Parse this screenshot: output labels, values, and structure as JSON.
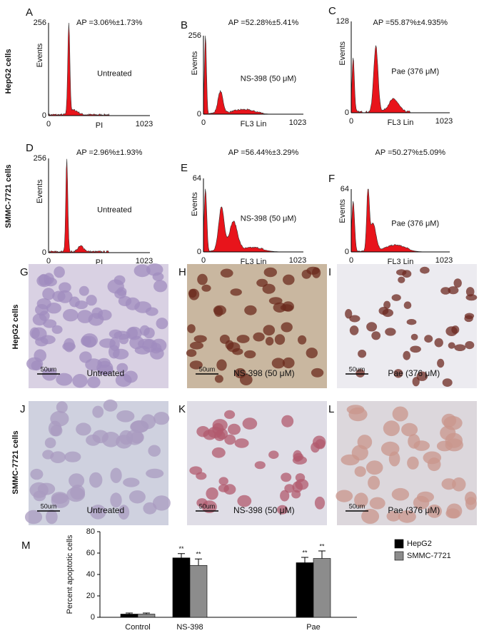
{
  "rows": [
    "HepG2 cells",
    "SMMC-7721 cells",
    "HepG2 cells",
    "SMMC-7721 cells"
  ],
  "histograms": [
    {
      "letter": "A",
      "ap": "AP =3.06%±1.73%",
      "condition": "Untreated",
      "xlabel": "PI",
      "ylabel": "Events",
      "yticks": [
        0,
        256
      ],
      "xticks": [
        0,
        1023
      ]
    },
    {
      "letter": "B",
      "ap": "AP =52.28%±5.41%",
      "condition": "NS-398 (50 μM)",
      "xlabel": "FL3 Lin",
      "ylabel": "Events",
      "yticks": [
        0,
        256
      ],
      "xticks": [
        0,
        1023
      ]
    },
    {
      "letter": "C",
      "ap": "AP =55.87%±4.935%",
      "condition": "Pae (376 μM)",
      "xlabel": "FL3 Lin",
      "ylabel": "Events",
      "yticks": [
        0,
        128
      ],
      "xticks": [
        0,
        1023
      ]
    },
    {
      "letter": "D",
      "ap": "AP =2.96%±1.93%",
      "condition": "Untreated",
      "xlabel": "PI",
      "ylabel": "Events",
      "yticks": [
        0,
        256
      ],
      "xticks": [
        0,
        1023
      ]
    },
    {
      "letter": "E",
      "ap": "AP =56.44%±3.29%",
      "condition": "NS-398 (50 μM)",
      "xlabel": "FL3 Lin",
      "ylabel": "Events",
      "yticks": [
        0,
        64
      ],
      "xticks": [
        0,
        1023
      ]
    },
    {
      "letter": "F",
      "ap": "AP =50.27%±5.09%",
      "condition": "Pae (376 μM)",
      "xlabel": "FL3 Lin",
      "ylabel": "Events",
      "yticks": [
        0,
        64
      ],
      "xticks": [
        0,
        1023
      ]
    }
  ],
  "micrographs": [
    {
      "letter": "G",
      "condition": "Untreated",
      "scale": "50um"
    },
    {
      "letter": "H",
      "condition": "NS-398 (50 μM)",
      "scale": "50um"
    },
    {
      "letter": "I",
      "condition": "Pae (376 μM)",
      "scale": "50um"
    },
    {
      "letter": "J",
      "condition": "Untreated",
      "scale": "50um"
    },
    {
      "letter": "K",
      "condition": "NS-398 (50 μM)",
      "scale": "50um"
    },
    {
      "letter": "L",
      "condition": "Pae (376 μM)",
      "scale": "50um"
    }
  ],
  "chart_data": {
    "type": "bar",
    "panel": "M",
    "ylabel": "Percent apoptotic cells",
    "categories": [
      "Control",
      "NS-398",
      "Pae"
    ],
    "series": [
      {
        "name": "HepG2",
        "color": "#000000",
        "values": [
          3,
          55.5,
          51
        ],
        "errors": [
          1,
          4,
          5
        ],
        "marks": [
          null,
          "**",
          "**"
        ]
      },
      {
        "name": "SMMC-7721",
        "color": "#8c8c8c",
        "values": [
          3,
          48.5,
          55
        ],
        "errors": [
          1,
          6,
          7
        ],
        "marks": [
          null,
          "**",
          "**"
        ]
      }
    ],
    "ylim": [
      0,
      80
    ],
    "yticks": [
      0,
      20,
      40,
      60,
      80
    ],
    "legend": "top-right"
  }
}
